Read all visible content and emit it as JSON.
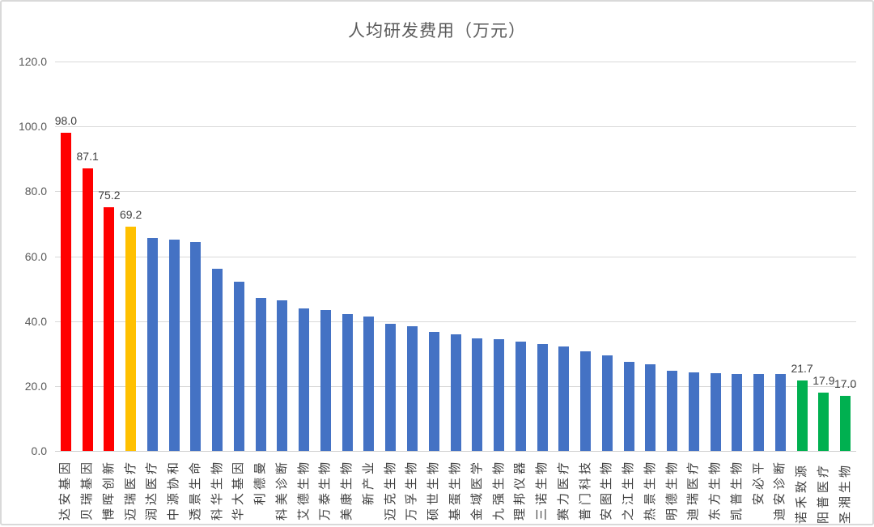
{
  "chart_data": {
    "type": "bar",
    "title": "人均研发费用（万元）",
    "categories": [
      "达安基因",
      "贝瑞基因",
      "博晖创新",
      "迈瑞医疗",
      "润达医疗",
      "中源协和",
      "透景生命",
      "科华生物",
      "华大基因",
      "利德曼",
      "科美诊断",
      "艾德生物",
      "万泰生物",
      "美康生物",
      "新产业",
      "迈克生物",
      "万孚生物",
      "硕世生物",
      "基蛋生物",
      "金域医学",
      "九强生物",
      "理邦仪器",
      "三诺生物",
      "赛力医疗",
      "普门科技",
      "安图生物",
      "之江生物",
      "热景生物",
      "明德生物",
      "迪瑞医疗",
      "东方生物",
      "凯普生物",
      "安必平",
      "迪安诊断",
      "诺禾致源",
      "阳普医疗",
      "圣湘生物"
    ],
    "values": [
      98.0,
      87.1,
      75.2,
      69.2,
      65.5,
      65.0,
      64.4,
      56.2,
      52.1,
      47.1,
      46.3,
      44.0,
      43.5,
      42.2,
      41.5,
      39.2,
      38.3,
      36.6,
      35.9,
      34.6,
      34.4,
      33.6,
      32.9,
      32.2,
      30.6,
      29.4,
      27.4,
      26.6,
      24.7,
      24.1,
      23.9,
      23.8,
      23.7,
      23.6,
      21.7,
      17.9,
      17.0
    ],
    "data_labels": [
      "98.0",
      "87.1",
      "75.2",
      "69.2",
      "",
      "",
      "",
      "",
      "",
      "",
      "",
      "",
      "",
      "",
      "",
      "",
      "",
      "",
      "",
      "",
      "",
      "",
      "",
      "",
      "",
      "",
      "",
      "",
      "",
      "",
      "",
      "",
      "",
      "",
      "21.7",
      "17.9",
      "17.0"
    ],
    "bar_colors": [
      "#FF0000",
      "#FF0000",
      "#FF0000",
      "#FFC000",
      "#4472C4",
      "#4472C4",
      "#4472C4",
      "#4472C4",
      "#4472C4",
      "#4472C4",
      "#4472C4",
      "#4472C4",
      "#4472C4",
      "#4472C4",
      "#4472C4",
      "#4472C4",
      "#4472C4",
      "#4472C4",
      "#4472C4",
      "#4472C4",
      "#4472C4",
      "#4472C4",
      "#4472C4",
      "#4472C4",
      "#4472C4",
      "#4472C4",
      "#4472C4",
      "#4472C4",
      "#4472C4",
      "#4472C4",
      "#4472C4",
      "#4472C4",
      "#4472C4",
      "#4472C4",
      "#00B050",
      "#00B050",
      "#00B050"
    ],
    "ylim": [
      0,
      120
    ],
    "ytick_labels": [
      "0.0",
      "20.0",
      "40.0",
      "60.0",
      "80.0",
      "100.0",
      "120.0"
    ],
    "xlabel": "",
    "ylabel": "",
    "grid": true,
    "legend_position": "none",
    "colors": {
      "red": "#FF0000",
      "orange": "#FFC000",
      "blue": "#4472C4",
      "green": "#00B050",
      "gridline": "#D9D9D9",
      "axis_line": "#CFCFCF",
      "title_text": "#595959",
      "tick_text": "#595959",
      "label_text": "#404040"
    }
  }
}
